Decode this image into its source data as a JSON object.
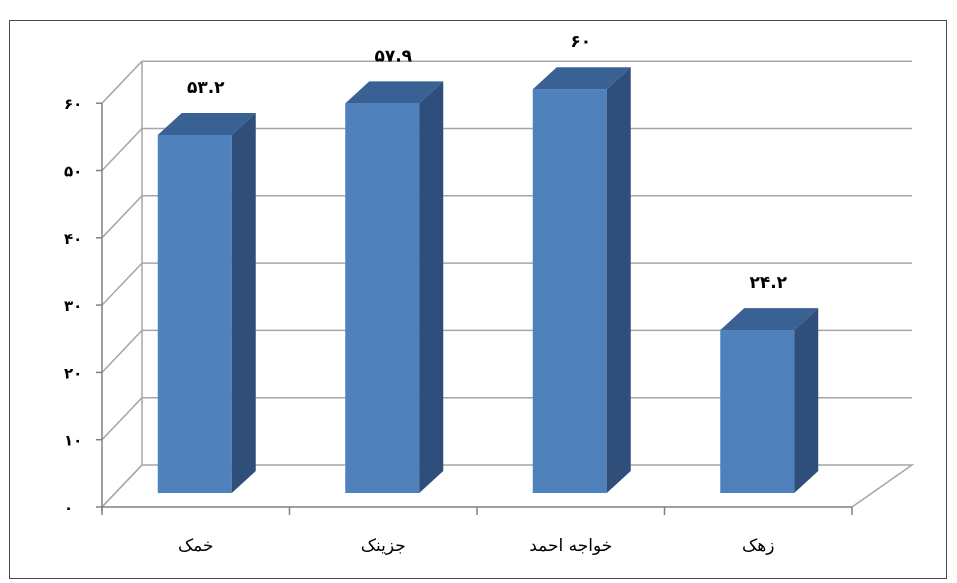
{
  "chart_data": {
    "type": "bar",
    "title": "",
    "categories": [
      "خمک",
      "جزینک",
      "خواجه احمد",
      "زهک"
    ],
    "values": [
      53.2,
      57.9,
      60,
      24.2
    ],
    "data_labels": [
      "۵۳.۲",
      "۵۷.۹",
      "۶۰",
      "۲۴.۲"
    ],
    "yticks": [
      0,
      10,
      20,
      30,
      40,
      50,
      60
    ],
    "ytick_labels": [
      "۰",
      "۱۰",
      "۲۰",
      "۳۰",
      "۴۰",
      "۵۰",
      "۶۰"
    ],
    "ylim": [
      0,
      60
    ],
    "xlabel": "",
    "ylabel": "",
    "grid": true,
    "legend": "none",
    "style": "3d-column"
  },
  "colors": {
    "bar_front": "#4f81bd",
    "bar_side": "#2f4f7a",
    "bar_top": "#3a6194",
    "grid": "#a6a6a6",
    "axis": "#808080"
  }
}
